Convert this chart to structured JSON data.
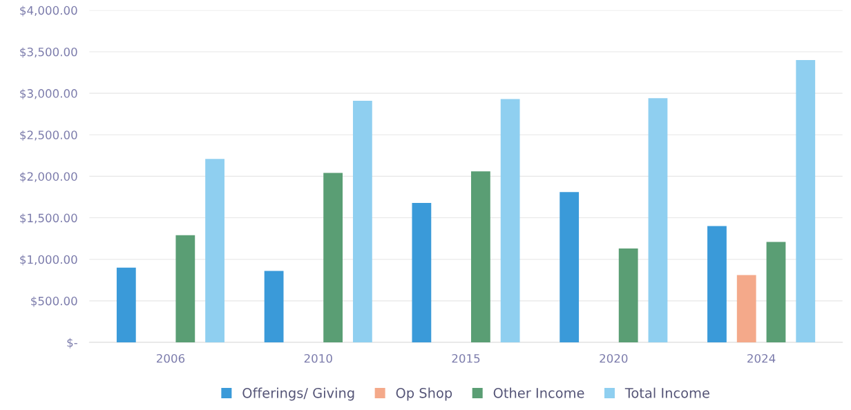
{
  "chart_data": {
    "type": "bar",
    "categories": [
      "2006",
      "2010",
      "2015",
      "2020",
      "2024"
    ],
    "series": [
      {
        "name": "Offerings/ Giving",
        "color": "#3a9ad9",
        "values": [
          900,
          860,
          1680,
          1810,
          1400
        ]
      },
      {
        "name": "Op Shop",
        "color": "#f4a98a",
        "values": [
          0,
          0,
          0,
          0,
          810
        ]
      },
      {
        "name": "Other Income",
        "color": "#5a9e74",
        "values": [
          1290,
          2040,
          2060,
          1130,
          1210
        ]
      },
      {
        "name": "Total Income",
        "color": "#8fcff0",
        "values": [
          2210,
          2910,
          2930,
          2940,
          3400
        ]
      }
    ],
    "ylim": [
      0,
      4000
    ],
    "yticks": [
      {
        "value": 0,
        "label": "$-"
      },
      {
        "value": 500,
        "label": "$500.00"
      },
      {
        "value": 1000,
        "label": "$1,000.00"
      },
      {
        "value": 1500,
        "label": "$1,500.00"
      },
      {
        "value": 2000,
        "label": "$2,000.00"
      },
      {
        "value": 2500,
        "label": "$2,500.00"
      },
      {
        "value": 3000,
        "label": "$3,000.00"
      },
      {
        "value": 3500,
        "label": "$3,500.00"
      },
      {
        "value": 4000,
        "label": "$4,000.00"
      }
    ],
    "grid": "y",
    "legend": "bottom"
  }
}
